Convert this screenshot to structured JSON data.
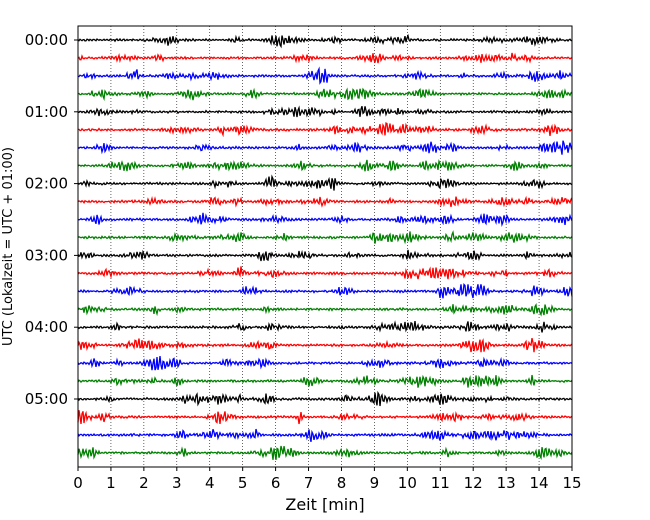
{
  "chart_data": {
    "type": "line",
    "title": "",
    "xlabel": "Zeit  [min]",
    "ylabel": "UTC (Lokalzeit = UTC + 01:00)",
    "xlim": [
      0,
      15
    ],
    "xticks": [
      0,
      1,
      2,
      3,
      4,
      5,
      6,
      7,
      8,
      9,
      10,
      11,
      12,
      13,
      14,
      15
    ],
    "x_grid": true,
    "y_tick_labels": [
      "00:00",
      "01:00",
      "02:00",
      "03:00",
      "04:00",
      "05:00"
    ],
    "trace_interval_min": 15,
    "trace_count": 24,
    "trace_colors": [
      "#000000",
      "#ff0000",
      "#0000ff",
      "#008000"
    ],
    "traces": [
      {
        "start": "00:00",
        "color": "#000000"
      },
      {
        "start": "00:15",
        "color": "#ff0000"
      },
      {
        "start": "00:30",
        "color": "#0000ff"
      },
      {
        "start": "00:45",
        "color": "#008000"
      },
      {
        "start": "01:00",
        "color": "#000000"
      },
      {
        "start": "01:15",
        "color": "#ff0000"
      },
      {
        "start": "01:30",
        "color": "#0000ff"
      },
      {
        "start": "01:45",
        "color": "#008000"
      },
      {
        "start": "02:00",
        "color": "#000000"
      },
      {
        "start": "02:15",
        "color": "#ff0000"
      },
      {
        "start": "02:30",
        "color": "#0000ff"
      },
      {
        "start": "02:45",
        "color": "#008000"
      },
      {
        "start": "03:00",
        "color": "#000000"
      },
      {
        "start": "03:15",
        "color": "#ff0000"
      },
      {
        "start": "03:30",
        "color": "#0000ff"
      },
      {
        "start": "03:45",
        "color": "#008000"
      },
      {
        "start": "04:00",
        "color": "#000000"
      },
      {
        "start": "04:15",
        "color": "#ff0000"
      },
      {
        "start": "04:30",
        "color": "#0000ff"
      },
      {
        "start": "04:45",
        "color": "#008000"
      },
      {
        "start": "05:00",
        "color": "#000000"
      },
      {
        "start": "05:15",
        "color": "#ff0000"
      },
      {
        "start": "05:30",
        "color": "#0000ff"
      },
      {
        "start": "05:45",
        "color": "#008000"
      }
    ]
  }
}
